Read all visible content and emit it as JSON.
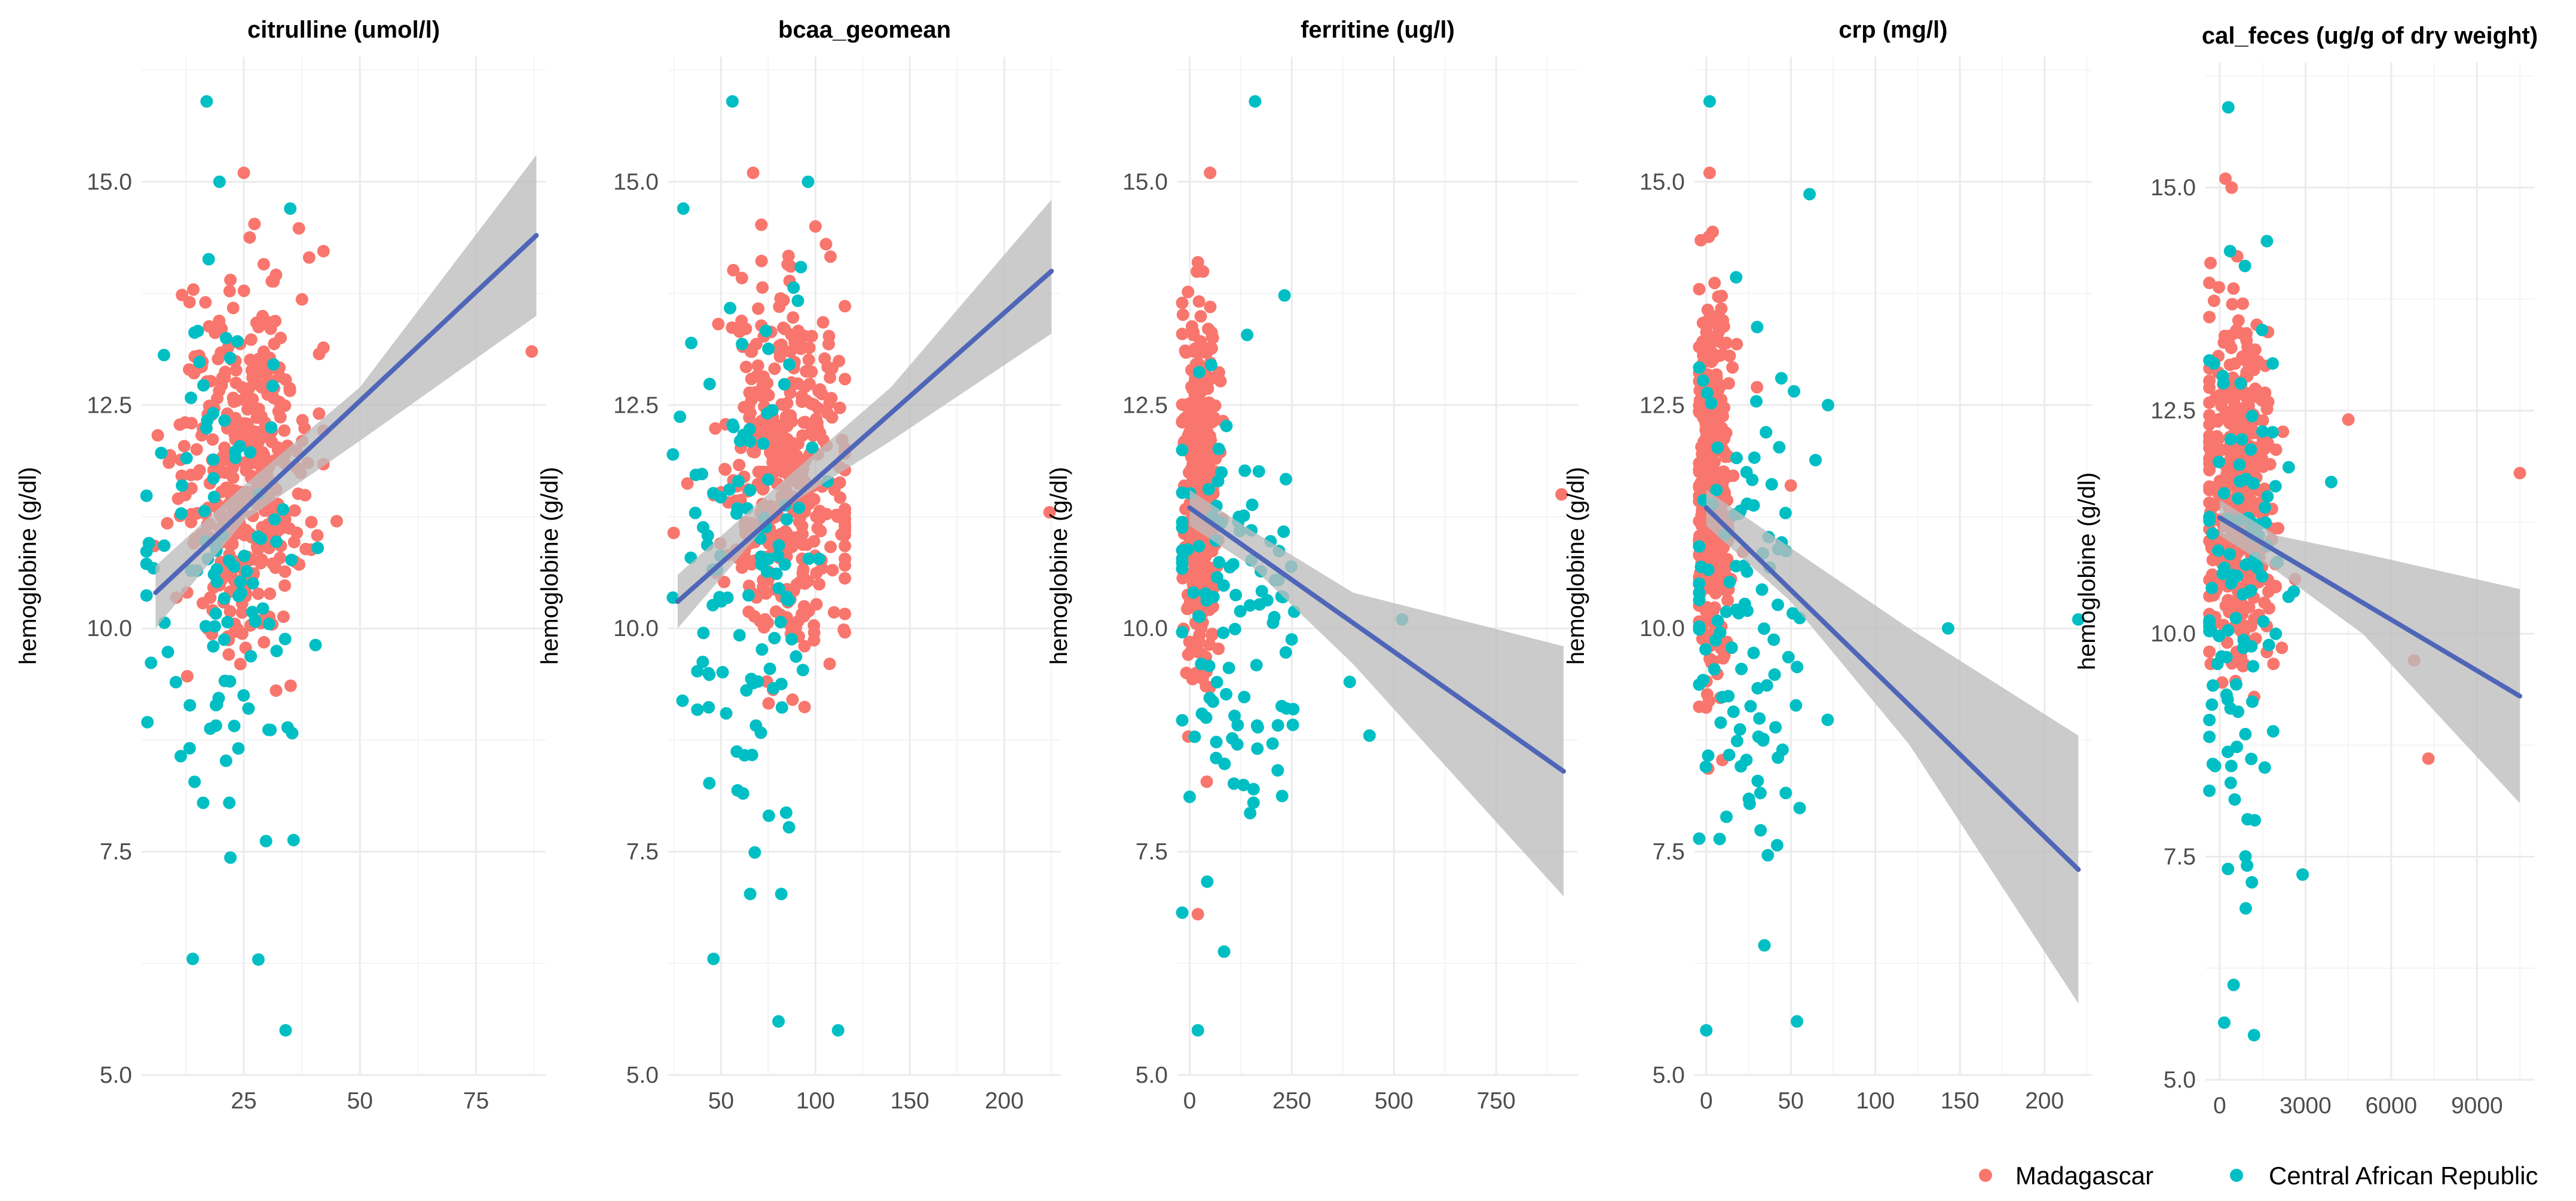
{
  "colors": {
    "madagascar": "#F8766D",
    "car": "#00BFC4",
    "fit": "#4F66B8",
    "ribbon": "#BDBDBD"
  },
  "chart_data": [
    {
      "type": "scatter",
      "title": "citrulline (umol/l)",
      "ylabel": "hemoglobine (g/dl)",
      "xlim": [
        3,
        90
      ],
      "ylim": [
        5.0,
        16.4
      ],
      "xticks": [
        25,
        50,
        75
      ],
      "xtick_labels": [
        "25",
        "50",
        "75"
      ],
      "yticks": [
        5.0,
        7.5,
        10.0,
        12.5,
        15.0
      ],
      "ytick_labels": [
        "5.0",
        "7.5",
        "10.0",
        "12.5",
        "15.0"
      ],
      "fit_line": [
        [
          6,
          10.4
        ],
        [
          88,
          14.4
        ]
      ],
      "ribbon": {
        "x": [
          6,
          25,
          50,
          88
        ],
        "lower": [
          10.0,
          11.2,
          12.1,
          13.5
        ],
        "upper": [
          10.7,
          11.6,
          12.7,
          15.3
        ]
      },
      "madagascar": {
        "n": 400,
        "x_mean": 25,
        "x_sd": 7,
        "y_mean": 11.8,
        "y_sd": 1.0,
        "extra": [
          [
            87,
            13.1
          ],
          [
            25,
            15.1
          ],
          [
            45,
            11.2
          ]
        ]
      },
      "car": {
        "n": 110,
        "x_mean": 20,
        "x_sd": 8,
        "y_mean": 10.4,
        "y_sd": 1.6,
        "extra": [
          [
            17,
            15.9
          ],
          [
            34,
            5.5
          ],
          [
            14,
            6.3
          ],
          [
            35,
            14.7
          ]
        ]
      }
    },
    {
      "type": "scatter",
      "title": "bcaa_geomean",
      "ylabel": "hemoglobine (g/dl)",
      "xlim": [
        22,
        230
      ],
      "ylim": [
        5.0,
        16.4
      ],
      "xticks": [
        50,
        100,
        150,
        200
      ],
      "xtick_labels": [
        "50",
        "100",
        "150",
        "200"
      ],
      "yticks": [
        5.0,
        7.5,
        10.0,
        12.5,
        15.0
      ],
      "ytick_labels": [
        "5.0",
        "7.5",
        "10.0",
        "12.5",
        "15.0"
      ],
      "fit_line": [
        [
          27,
          10.3
        ],
        [
          225,
          14.0
        ]
      ],
      "ribbon": {
        "x": [
          27,
          80,
          140,
          225
        ],
        "lower": [
          10.0,
          11.3,
          12.1,
          13.3
        ],
        "upper": [
          10.6,
          11.6,
          12.7,
          14.8
        ]
      },
      "madagascar": {
        "n": 400,
        "x_mean": 85,
        "x_sd": 18,
        "y_mean": 11.7,
        "y_sd": 1.0,
        "extra": [
          [
            224,
            11.3
          ],
          [
            67,
            15.1
          ],
          [
            100,
            14.5
          ]
        ]
      },
      "car": {
        "n": 110,
        "x_mean": 65,
        "x_sd": 20,
        "y_mean": 10.4,
        "y_sd": 1.6,
        "extra": [
          [
            56,
            15.9
          ],
          [
            30,
            14.7
          ],
          [
            112,
            5.5
          ],
          [
            46,
            6.3
          ]
        ]
      }
    },
    {
      "type": "scatter",
      "title": "ferritine (ug/l)",
      "ylabel": "hemoglobine (g/dl)",
      "xlim": [
        -30,
        950
      ],
      "ylim": [
        5.0,
        16.4
      ],
      "xticks": [
        0,
        250,
        500,
        750
      ],
      "xtick_labels": [
        "0",
        "250",
        "500",
        "750"
      ],
      "yticks": [
        5.0,
        7.5,
        10.0,
        12.5,
        15.0
      ],
      "ytick_labels": [
        "5.0",
        "7.5",
        "10.0",
        "12.5",
        "15.0"
      ],
      "fit_line": [
        [
          0,
          11.35
        ],
        [
          915,
          8.4
        ]
      ],
      "ribbon": {
        "x": [
          0,
          150,
          400,
          915
        ],
        "lower": [
          11.15,
          10.7,
          9.6,
          7.0
        ],
        "upper": [
          11.55,
          11.1,
          10.4,
          9.8
        ]
      },
      "madagascar": {
        "n": 420,
        "x_mean": 25,
        "x_sd": 20,
        "y_mean": 11.6,
        "y_sd": 1.0,
        "extra": [
          [
            910,
            11.5
          ],
          [
            50,
            15.1
          ],
          [
            20,
            6.8
          ]
        ]
      },
      "car": {
        "n": 110,
        "x_mean": 90,
        "x_sd": 90,
        "y_mean": 10.2,
        "y_sd": 1.5,
        "extra": [
          [
            160,
            15.9
          ],
          [
            20,
            5.5
          ],
          [
            520,
            10.1
          ],
          [
            440,
            8.8
          ]
        ]
      }
    },
    {
      "type": "scatter",
      "title": "crp (mg/l)",
      "ylabel": "hemoglobine (g/dl)",
      "xlim": [
        -7,
        228
      ],
      "ylim": [
        5.0,
        16.4
      ],
      "xticks": [
        0,
        50,
        100,
        150,
        200
      ],
      "xtick_labels": [
        "0",
        "50",
        "100",
        "150",
        "200"
      ],
      "yticks": [
        5.0,
        7.5,
        10.0,
        12.5,
        15.0
      ],
      "ytick_labels": [
        "5.0",
        "7.5",
        "10.0",
        "12.5",
        "15.0"
      ],
      "fit_line": [
        [
          0,
          11.35
        ],
        [
          220,
          7.3
        ]
      ],
      "ribbon": {
        "x": [
          0,
          50,
          120,
          220
        ],
        "lower": [
          11.15,
          10.3,
          8.7,
          5.8
        ],
        "upper": [
          11.55,
          10.9,
          10.0,
          8.8
        ]
      },
      "madagascar": {
        "n": 420,
        "x_mean": 3,
        "x_sd": 5,
        "y_mean": 11.6,
        "y_sd": 1.0,
        "extra": [
          [
            2,
            15.1
          ],
          [
            50,
            11.6
          ],
          [
            30,
            12.7
          ]
        ]
      },
      "car": {
        "n": 110,
        "x_mean": 20,
        "x_sd": 20,
        "y_mean": 10.3,
        "y_sd": 1.6,
        "extra": [
          [
            2,
            15.9
          ],
          [
            0,
            5.5
          ],
          [
            220,
            10.1
          ],
          [
            143,
            10.0
          ],
          [
            72,
            12.5
          ]
        ]
      }
    },
    {
      "type": "scatter",
      "title": "cal_feces (ug/g of dry weight)",
      "ylabel": "hemoglobine (g/dl)",
      "xlim": [
        -500,
        11000
      ],
      "ylim": [
        5.0,
        16.4
      ],
      "xticks": [
        0,
        3000,
        6000,
        9000
      ],
      "xtick_labels": [
        "0",
        "3000",
        "6000",
        "9000"
      ],
      "yticks": [
        5.0,
        7.5,
        10.0,
        12.5,
        15.0
      ],
      "ytick_labels": [
        "5.0",
        "7.5",
        "10.0",
        "12.5",
        "15.0"
      ],
      "fit_line": [
        [
          0,
          11.3
        ],
        [
          10500,
          9.3
        ]
      ],
      "ribbon": {
        "x": [
          0,
          2000,
          5000,
          10500
        ],
        "lower": [
          11.1,
          10.7,
          10.0,
          8.1
        ],
        "upper": [
          11.5,
          11.1,
          10.9,
          10.5
        ]
      },
      "madagascar": {
        "n": 400,
        "x_mean": 600,
        "x_sd": 600,
        "y_mean": 11.6,
        "y_sd": 1.0,
        "extra": [
          [
            10500,
            11.8
          ],
          [
            7300,
            8.6
          ],
          [
            6800,
            9.7
          ],
          [
            4500,
            12.4
          ],
          [
            200,
            15.1
          ]
        ]
      },
      "car": {
        "n": 110,
        "x_mean": 700,
        "x_sd": 700,
        "y_mean": 10.3,
        "y_sd": 1.6,
        "extra": [
          [
            300,
            15.9
          ],
          [
            1200,
            5.5
          ],
          [
            2900,
            7.3
          ],
          [
            3900,
            11.7
          ]
        ]
      }
    }
  ],
  "legend": {
    "position": "bottom-right",
    "items": [
      {
        "label": "Madagascar",
        "color_key": "madagascar"
      },
      {
        "label": "Central African Republic",
        "color_key": "car"
      }
    ]
  }
}
